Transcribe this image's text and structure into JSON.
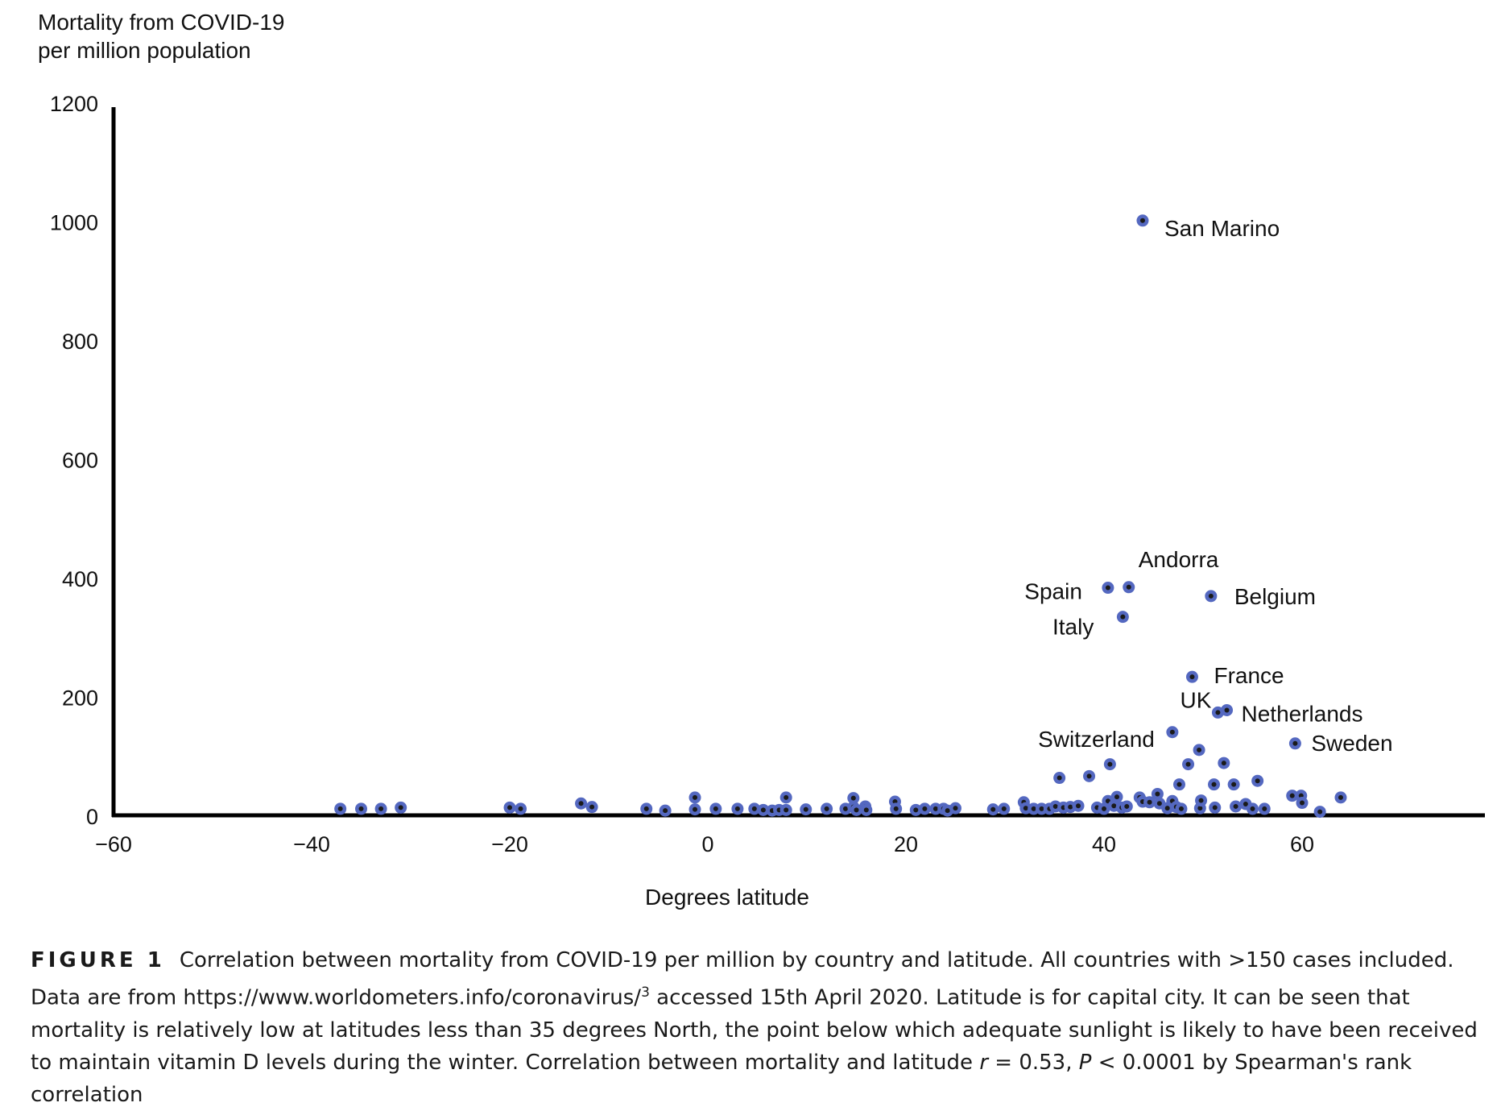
{
  "chart_data": {
    "type": "scatter",
    "ylabel_lines": [
      "Mortality from COVID-19",
      "per million population"
    ],
    "xlabel": "Degrees latitude",
    "xlim": [
      -60,
      78
    ],
    "ylim": [
      0,
      1200
    ],
    "x_ticks": [
      "−60",
      "−40",
      "−20",
      "0",
      "20",
      "40",
      "60"
    ],
    "x_tick_values": [
      -60,
      -40,
      -20,
      0,
      20,
      40,
      60
    ],
    "y_ticks": [
      "0",
      "200",
      "400",
      "600",
      "800",
      "1000",
      "1200"
    ],
    "y_tick_values": [
      0,
      200,
      400,
      600,
      800,
      1000,
      1200
    ],
    "marker_color": "#5468c0",
    "marker_center_color": "#1a1a1a",
    "axis_color": "#000000",
    "grid": false,
    "labeled_points": [
      {
        "label": "San Marino",
        "x": 43.9,
        "y": 1001
      },
      {
        "label": "Andorra",
        "x": 42.5,
        "y": 384
      },
      {
        "label": "Spain",
        "x": 40.4,
        "y": 383
      },
      {
        "label": "Belgium",
        "x": 50.8,
        "y": 369
      },
      {
        "label": "Italy",
        "x": 41.9,
        "y": 334
      },
      {
        "label": "France",
        "x": 48.9,
        "y": 233
      },
      {
        "label": "Netherlands",
        "x": 52.4,
        "y": 177
      },
      {
        "label": "UK",
        "x": 51.5,
        "y": 173
      },
      {
        "label": "Switzerland",
        "x": 46.9,
        "y": 140
      },
      {
        "label": "Sweden",
        "x": 59.3,
        "y": 121
      }
    ],
    "points": [
      {
        "x": -37.1,
        "y": 11
      },
      {
        "x": -35.0,
        "y": 11
      },
      {
        "x": -33.0,
        "y": 11
      },
      {
        "x": -31.0,
        "y": 13
      },
      {
        "x": -20.0,
        "y": 13
      },
      {
        "x": -18.9,
        "y": 11
      },
      {
        "x": -12.8,
        "y": 20
      },
      {
        "x": -11.7,
        "y": 14
      },
      {
        "x": -6.2,
        "y": 11
      },
      {
        "x": -4.3,
        "y": 8
      },
      {
        "x": -1.3,
        "y": 30
      },
      {
        "x": -1.3,
        "y": 10
      },
      {
        "x": 0.8,
        "y": 11
      },
      {
        "x": 3.0,
        "y": 11
      },
      {
        "x": 4.7,
        "y": 11
      },
      {
        "x": 5.6,
        "y": 9
      },
      {
        "x": 6.5,
        "y": 8
      },
      {
        "x": 7.2,
        "y": 9
      },
      {
        "x": 7.9,
        "y": 30
      },
      {
        "x": 7.9,
        "y": 9
      },
      {
        "x": 9.9,
        "y": 10
      },
      {
        "x": 12.0,
        "y": 11
      },
      {
        "x": 13.9,
        "y": 11
      },
      {
        "x": 14.7,
        "y": 29
      },
      {
        "x": 14.7,
        "y": 14
      },
      {
        "x": 15.0,
        "y": 9
      },
      {
        "x": 15.9,
        "y": 15
      },
      {
        "x": 16.0,
        "y": 9
      },
      {
        "x": 18.9,
        "y": 23
      },
      {
        "x": 19.0,
        "y": 11
      },
      {
        "x": 21.0,
        "y": 9
      },
      {
        "x": 21.9,
        "y": 11
      },
      {
        "x": 23.0,
        "y": 11
      },
      {
        "x": 23.8,
        "y": 11
      },
      {
        "x": 24.2,
        "y": 8
      },
      {
        "x": 25.0,
        "y": 12
      },
      {
        "x": 28.8,
        "y": 10
      },
      {
        "x": 29.9,
        "y": 11
      },
      {
        "x": 31.9,
        "y": 22
      },
      {
        "x": 32.1,
        "y": 12
      },
      {
        "x": 32.9,
        "y": 11
      },
      {
        "x": 33.7,
        "y": 11
      },
      {
        "x": 34.5,
        "y": 11
      },
      {
        "x": 35.1,
        "y": 15
      },
      {
        "x": 35.5,
        "y": 63
      },
      {
        "x": 35.9,
        "y": 13
      },
      {
        "x": 36.6,
        "y": 14
      },
      {
        "x": 37.4,
        "y": 16
      },
      {
        "x": 38.5,
        "y": 66
      },
      {
        "x": 39.3,
        "y": 13
      },
      {
        "x": 40.0,
        "y": 11
      },
      {
        "x": 40.4,
        "y": 24
      },
      {
        "x": 40.6,
        "y": 86
      },
      {
        "x": 41.0,
        "y": 16
      },
      {
        "x": 41.3,
        "y": 31
      },
      {
        "x": 41.8,
        "y": 13
      },
      {
        "x": 42.3,
        "y": 15
      },
      {
        "x": 43.6,
        "y": 30
      },
      {
        "x": 43.9,
        "y": 23
      },
      {
        "x": 44.6,
        "y": 22
      },
      {
        "x": 45.4,
        "y": 36
      },
      {
        "x": 45.6,
        "y": 20
      },
      {
        "x": 46.4,
        "y": 12
      },
      {
        "x": 46.9,
        "y": 24
      },
      {
        "x": 47.3,
        "y": 14
      },
      {
        "x": 47.6,
        "y": 52
      },
      {
        "x": 47.8,
        "y": 11
      },
      {
        "x": 48.5,
        "y": 86
      },
      {
        "x": 49.6,
        "y": 110
      },
      {
        "x": 49.7,
        "y": 12
      },
      {
        "x": 49.8,
        "y": 25
      },
      {
        "x": 51.1,
        "y": 52
      },
      {
        "x": 51.2,
        "y": 13
      },
      {
        "x": 52.1,
        "y": 88
      },
      {
        "x": 53.1,
        "y": 52
      },
      {
        "x": 53.3,
        "y": 15
      },
      {
        "x": 54.3,
        "y": 19
      },
      {
        "x": 55.0,
        "y": 11
      },
      {
        "x": 55.5,
        "y": 58
      },
      {
        "x": 56.2,
        "y": 11
      },
      {
        "x": 59.0,
        "y": 33
      },
      {
        "x": 59.9,
        "y": 33
      },
      {
        "x": 60.0,
        "y": 21
      },
      {
        "x": 61.8,
        "y": 6
      },
      {
        "x": 63.9,
        "y": 30
      }
    ]
  },
  "caption": {
    "label": "FIGURE 1",
    "text_1": "Correlation between mortality from COVID-19 per million by country and latitude. All countries with >150 cases included. Data are from https://www.worldometers.info/coronavirus/",
    "sup": "3",
    "text_2": " accessed 15th April 2020. Latitude is for capital city. It can be seen that mortality is relatively low at latitudes less than 35 degrees North, the point below which adequate sunlight is likely to have been received to maintain vitamin D levels during the winter. Correlation between mortality and latitude ",
    "r_symbol": "r",
    "text_3": " = 0.53, ",
    "p_symbol": "P",
    "text_4": " < 0.0001 by Spearman's rank correlation"
  }
}
